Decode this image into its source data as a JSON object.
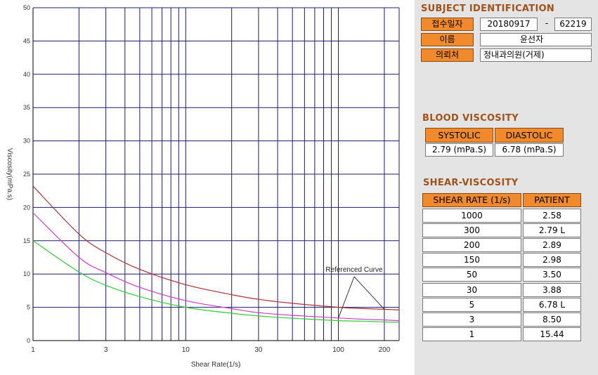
{
  "chart_data": {
    "type": "line",
    "xscale": "log",
    "xlim": [
      1,
      250
    ],
    "ylim": [
      0,
      50
    ],
    "xlabel": "Shear Rate(1/s)",
    "ylabel": "Viscosity(mPa.s)",
    "x_ticks": [
      1,
      3,
      10,
      30,
      100,
      200
    ],
    "y_ticks": [
      0,
      5,
      10,
      15,
      20,
      25,
      30,
      35,
      40,
      45,
      50
    ],
    "grid": true,
    "annotation": "Referenced Curve",
    "series": [
      {
        "color": "#b03030",
        "x": [
          1,
          2,
          3,
          5,
          10,
          20,
          30,
          50,
          100,
          150,
          200,
          250
        ],
        "y": [
          23.2,
          16.0,
          13.2,
          10.7,
          8.4,
          6.9,
          6.2,
          5.6,
          5.0,
          4.8,
          4.7,
          4.6
        ]
      },
      {
        "color": "#cc3ccc",
        "x": [
          1,
          2,
          3,
          5,
          10,
          20,
          30,
          50,
          100,
          150,
          200,
          250
        ],
        "y": [
          19.2,
          12.5,
          10.2,
          8.0,
          6.0,
          4.8,
          4.2,
          3.8,
          3.4,
          3.2,
          3.1,
          3.0
        ]
      },
      {
        "color": "#33cc33",
        "x": [
          1,
          2,
          3,
          5,
          10,
          20,
          30,
          50,
          100,
          150,
          200,
          250
        ],
        "y": [
          15.0,
          10.3,
          8.3,
          6.6,
          5.0,
          4.1,
          3.7,
          3.35,
          3.0,
          2.9,
          2.8,
          2.75
        ]
      }
    ]
  },
  "subject": {
    "title": "SUBJECT IDENTIFICATION",
    "date_label": "접수일자",
    "date_value": "20180917",
    "separator": "-",
    "id_value": "62219",
    "name_label": "이름",
    "name_value": "윤선자",
    "clinic_label": "의뢰처",
    "clinic_value": "정내과의원(거제)"
  },
  "blood": {
    "title": "BLOOD VISCOSITY",
    "systolic_label": "SYSTOLIC",
    "diastolic_label": "DIASTOLIC",
    "systolic_value": "2.79 (mPa.S)",
    "diastolic_value": "6.78 (mPa.S)"
  },
  "shear": {
    "title": "SHEAR-VISCOSITY",
    "col_rate": "SHEAR RATE (1/s)",
    "col_patient": "PATIENT",
    "rows": [
      {
        "rate": "1000",
        "patient": "2.58",
        "highlight": false
      },
      {
        "rate": "300",
        "patient": "2.79 L",
        "highlight": true
      },
      {
        "rate": "200",
        "patient": "2.89",
        "highlight": false
      },
      {
        "rate": "150",
        "patient": "2.98",
        "highlight": false
      },
      {
        "rate": "50",
        "patient": "3.50",
        "highlight": false
      },
      {
        "rate": "30",
        "patient": "3.88",
        "highlight": false
      },
      {
        "rate": "5",
        "patient": "6.78 L",
        "highlight": true
      },
      {
        "rate": "3",
        "patient": "8.50",
        "highlight": false
      },
      {
        "rate": "1",
        "patient": "15.44",
        "highlight": false
      }
    ]
  },
  "colors": {
    "grid": "#1c1c6e",
    "accent": "#f08a2c",
    "section_title": "#a0521a",
    "highlight": "#bff6fb"
  }
}
